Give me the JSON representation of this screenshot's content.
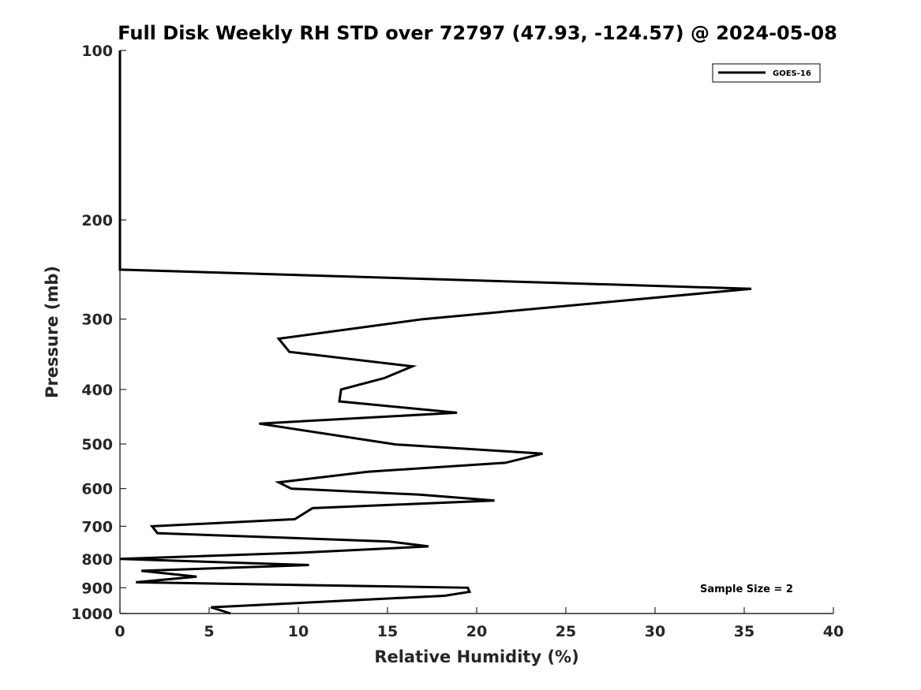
{
  "chart_data": {
    "type": "line",
    "title": "Full Disk Weekly RH STD over 72797 (47.93, -124.57) @ 2024-05-08",
    "xlabel": "Relative Humidity (%)",
    "ylabel": "Pressure (mb)",
    "xlim": [
      0,
      40
    ],
    "ylim": [
      100,
      1000
    ],
    "y_scale": "log",
    "y_inverted": true,
    "x_ticks": [
      0,
      5,
      10,
      15,
      20,
      25,
      30,
      35,
      40
    ],
    "y_ticks": [
      100,
      200,
      300,
      400,
      500,
      600,
      700,
      800,
      900,
      1000
    ],
    "grid": false,
    "legend_position": "top-right",
    "annotation": "Sample Size = 2",
    "series": [
      {
        "name": "GOES-16",
        "color": "#000000",
        "points": [
          {
            "rh": 0.0,
            "p": 100
          },
          {
            "rh": 0.0,
            "p": 150
          },
          {
            "rh": 0.0,
            "p": 200
          },
          {
            "rh": 0.0,
            "p": 245
          },
          {
            "rh": 35.4,
            "p": 265
          },
          {
            "rh": 17.0,
            "p": 300
          },
          {
            "rh": 8.9,
            "p": 325
          },
          {
            "rh": 9.5,
            "p": 343
          },
          {
            "rh": 16.4,
            "p": 364
          },
          {
            "rh": 14.8,
            "p": 382
          },
          {
            "rh": 12.4,
            "p": 400
          },
          {
            "rh": 12.3,
            "p": 420
          },
          {
            "rh": 18.9,
            "p": 440
          },
          {
            "rh": 7.8,
            "p": 460
          },
          {
            "rh": 15.5,
            "p": 501
          },
          {
            "rh": 23.7,
            "p": 520
          },
          {
            "rh": 21.6,
            "p": 540
          },
          {
            "rh": 13.9,
            "p": 560
          },
          {
            "rh": 8.9,
            "p": 585
          },
          {
            "rh": 9.6,
            "p": 600
          },
          {
            "rh": 16.8,
            "p": 615
          },
          {
            "rh": 21.0,
            "p": 630
          },
          {
            "rh": 10.8,
            "p": 650
          },
          {
            "rh": 9.8,
            "p": 680
          },
          {
            "rh": 1.8,
            "p": 700
          },
          {
            "rh": 2.1,
            "p": 720
          },
          {
            "rh": 15.1,
            "p": 745
          },
          {
            "rh": 17.3,
            "p": 760
          },
          {
            "rh": 10.0,
            "p": 780
          },
          {
            "rh": 0.0,
            "p": 800
          },
          {
            "rh": 10.6,
            "p": 820
          },
          {
            "rh": 1.2,
            "p": 840
          },
          {
            "rh": 4.3,
            "p": 860
          },
          {
            "rh": 0.9,
            "p": 880
          },
          {
            "rh": 19.5,
            "p": 900
          },
          {
            "rh": 19.6,
            "p": 915
          },
          {
            "rh": 18.2,
            "p": 930
          },
          {
            "rh": 5.1,
            "p": 975
          },
          {
            "rh": 6.2,
            "p": 1000
          }
        ]
      }
    ]
  }
}
